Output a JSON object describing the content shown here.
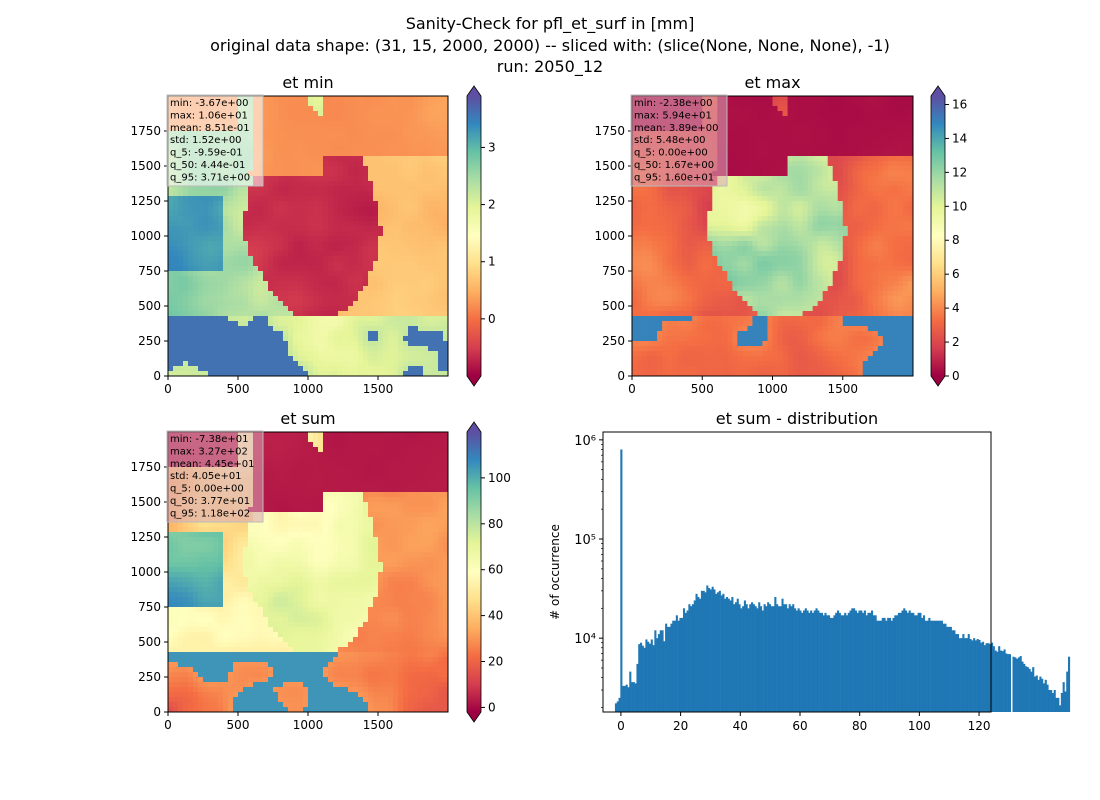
{
  "figure": {
    "title_lines": [
      "Sanity-Check for pfl_et_surf in [mm]",
      "original data shape: (31, 15, 2000, 2000) -- sliced with: (slice(None, None, None), -1)",
      "run: 2050_12"
    ],
    "colormap": [
      "#9e0142",
      "#d53e4f",
      "#f46d43",
      "#fdae61",
      "#fee08b",
      "#ffffbf",
      "#e6f598",
      "#abdda4",
      "#66c2a5",
      "#3288bd",
      "#5e4fa2"
    ],
    "histogram_color": "#1f77b4"
  },
  "chart_data": [
    {
      "type": "heatmap",
      "title": "et min",
      "x_ticks": [
        "0",
        "500",
        "1000",
        "1500"
      ],
      "y_ticks": [
        "0",
        "250",
        "500",
        "750",
        "1000",
        "1250",
        "1500",
        "1750"
      ],
      "colorbar": {
        "range": [
          -1.0,
          3.9
        ],
        "ticks": [
          "0",
          "1",
          "2",
          "3"
        ],
        "extend": "both"
      },
      "stats": [
        "min: -3.67e+00",
        "max: 1.06e+01",
        "mean: 8.51e-01",
        "std: 1.52e+00",
        "q_5: -9.59e-01",
        "q_50: 4.44e-01",
        "q_95: 3.71e+00"
      ],
      "stats_box_color": "#ffffff"
    },
    {
      "type": "heatmap",
      "title": "et max",
      "x_ticks": [
        "0",
        "500",
        "1000",
        "1500"
      ],
      "y_ticks": [
        "0",
        "250",
        "500",
        "750",
        "1000",
        "1250",
        "1500",
        "1750"
      ],
      "colorbar": {
        "range": [
          0,
          16.5
        ],
        "ticks": [
          "0",
          "2",
          "4",
          "6",
          "8",
          "10",
          "12",
          "14",
          "16"
        ],
        "extend": "both"
      },
      "stats": [
        "min: -2.38e+00",
        "max: 5.94e+01",
        "mean: 3.89e+00",
        "std: 5.48e+00",
        "q_5: 0.00e+00",
        "q_50: 1.67e+00",
        "q_95: 1.60e+01"
      ],
      "stats_box_color": "#d9a6b8"
    },
    {
      "type": "heatmap",
      "title": "et sum",
      "x_ticks": [
        "0",
        "500",
        "1000",
        "1500"
      ],
      "y_ticks": [
        "0",
        "250",
        "500",
        "750",
        "1000",
        "1250",
        "1500",
        "1750"
      ],
      "colorbar": {
        "range": [
          -2,
          120
        ],
        "ticks": [
          "0",
          "20",
          "40",
          "60",
          "80",
          "100"
        ],
        "extend": "both"
      },
      "stats": [
        "min: -7.38e+01",
        "max: 3.27e+02",
        "mean: 4.45e+01",
        "std: 4.05e+01",
        "q_5: 0.00e+00",
        "q_50: 3.77e+01",
        "q_95: 1.18e+02"
      ],
      "stats_box_color": "#d9a6b8"
    },
    {
      "type": "bar",
      "title": "et sum - distribution",
      "xlabel": "",
      "ylabel": "# of occurrence",
      "yscale": "log",
      "xlim": [
        -6,
        124
      ],
      "ylim": [
        1800,
        1200000
      ],
      "x_ticks": [
        0,
        20,
        40,
        60,
        80,
        100,
        120
      ],
      "y_ticks": [
        {
          "value": 10000,
          "label": "10⁴"
        },
        {
          "value": 100000,
          "label": "10⁵"
        },
        {
          "value": 1000000,
          "label": "10⁶"
        }
      ],
      "bin_start": -2,
      "bin_width": 0.6,
      "values": [
        2200,
        2300,
        2500,
        800000,
        3300,
        3300,
        3400,
        3200,
        4600,
        3600,
        3600,
        3500,
        5500,
        8700,
        9000,
        8400,
        8000,
        9700,
        9200,
        8800,
        9700,
        8500,
        12000,
        10000,
        11000,
        12000,
        12000,
        9300,
        14000,
        13000,
        13000,
        14000,
        15000,
        15000,
        17000,
        15000,
        16000,
        16000,
        20000,
        18000,
        19000,
        22000,
        21000,
        22000,
        24000,
        28000,
        26000,
        25000,
        30000,
        30000,
        29000,
        34000,
        32000,
        31000,
        33000,
        31000,
        28000,
        29000,
        30000,
        27000,
        28000,
        25000,
        26000,
        25000,
        24000,
        26000,
        22000,
        23000,
        25000,
        22000,
        20000,
        21000,
        24000,
        22000,
        20000,
        22000,
        23000,
        22000,
        21000,
        20000,
        23000,
        21000,
        19000,
        22000,
        21000,
        23000,
        22000,
        21000,
        21000,
        26000,
        22000,
        21000,
        21000,
        25000,
        22000,
        22000,
        20000,
        22000,
        21000,
        22000,
        20000,
        19000,
        20000,
        19000,
        18000,
        19000,
        20000,
        19000,
        18000,
        19000,
        18000,
        19000,
        20000,
        19000,
        18000,
        18000,
        17000,
        18000,
        17000,
        17000,
        16000,
        16000,
        17000,
        18000,
        19000,
        18000,
        17000,
        17000,
        18000,
        17000,
        18000,
        19000,
        20000,
        20000,
        19000,
        18000,
        19000,
        19000,
        18000,
        19000,
        17000,
        18000,
        18000,
        19000,
        17000,
        17000,
        15000,
        15000,
        15000,
        16000,
        16000,
        15000,
        16000,
        16000,
        15000,
        16000,
        17000,
        17000,
        18000,
        18000,
        19000,
        20000,
        19000,
        18000,
        19000,
        18000,
        18000,
        17000,
        17000,
        18000,
        18000,
        16000,
        17000,
        15000,
        15000,
        16000,
        15000,
        15000,
        15000,
        15000,
        15000,
        15000,
        15000,
        14000,
        14000,
        13000,
        13000,
        13000,
        12000,
        12000,
        11000,
        11000,
        10000,
        10000,
        11000,
        10000,
        10000,
        11000,
        9800,
        9500,
        10000,
        9500,
        9800,
        9600,
        9000,
        9200,
        8500,
        8900,
        8900,
        8700,
        9000,
        8300,
        7500,
        7300,
        8300,
        7500,
        7400,
        7700,
        7000,
        6900,
        6900,
        1800,
        6500,
        6400,
        6200,
        6400,
        6600,
        5800,
        5500,
        5200,
        5100,
        4900,
        4600,
        5100,
        4100,
        4200,
        3800,
        4100,
        3900,
        3500,
        3800,
        3400,
        3000,
        3000,
        2800,
        3000,
        2500,
        2500,
        2100,
        2800,
        3600,
        2900,
        4600,
        6500
      ]
    }
  ]
}
